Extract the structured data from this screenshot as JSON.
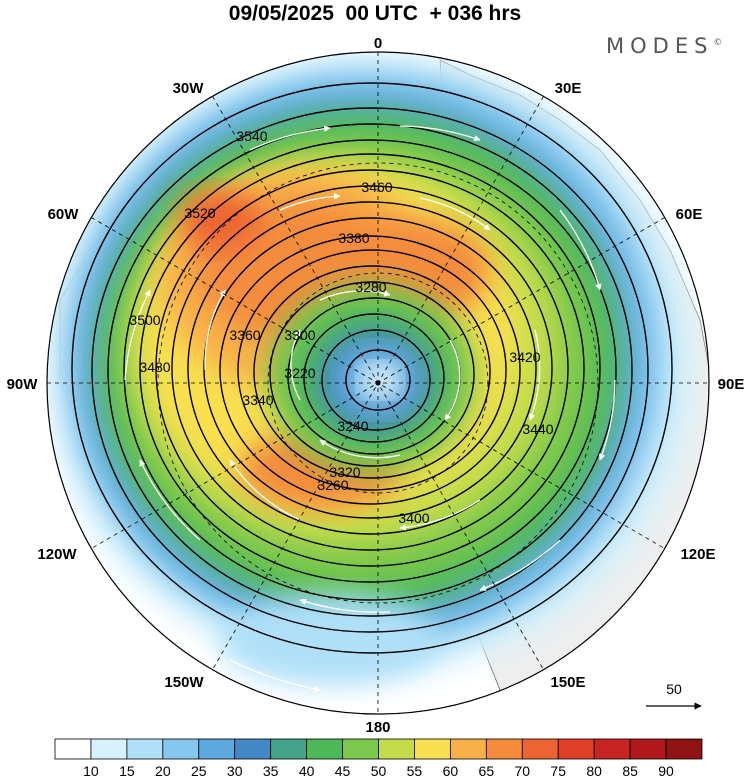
{
  "title": "09/05/2025  00 UTC  + 036 hrs",
  "logo": "MODES",
  "logo_mark": "©",
  "longitude_labels": {
    "lon_0": "0",
    "lon_30e": "30E",
    "lon_60e": "60E",
    "lon_90e": "90E",
    "lon_120e": "120E",
    "lon_150e": "150E",
    "lon_180": "180",
    "lon_150w": "150W",
    "lon_120w": "120W",
    "lon_90w": "90W",
    "lon_60w": "60W",
    "lon_30w": "30W"
  },
  "vector_reference": {
    "label": "50"
  },
  "colorbar": {
    "levels": [
      "10",
      "15",
      "20",
      "25",
      "30",
      "35",
      "40",
      "45",
      "50",
      "55",
      "60",
      "65",
      "70",
      "75",
      "80",
      "85",
      "90"
    ],
    "colors": [
      "#ffffff",
      "#d6f2fc",
      "#b0e0f8",
      "#86c7ef",
      "#5ea8e0",
      "#4488c6",
      "#44a48a",
      "#4cb85a",
      "#7cc84c",
      "#c4dc4c",
      "#f8e050",
      "#f8b048",
      "#f48c3c",
      "#ec6432",
      "#e0402a",
      "#c82424",
      "#b0181e",
      "#901414"
    ]
  },
  "contours": {
    "labels": [
      "3540",
      "3520",
      "3500",
      "3480",
      "3460",
      "3440",
      "3420",
      "3400",
      "3380",
      "3360",
      "3340",
      "3320",
      "3300",
      "3280",
      "3260",
      "3240",
      "3220"
    ]
  },
  "colors": {
    "land": "#eeeeee",
    "ocean": "#ffffff",
    "contour": "#000000",
    "vector": "#ffffff"
  }
}
